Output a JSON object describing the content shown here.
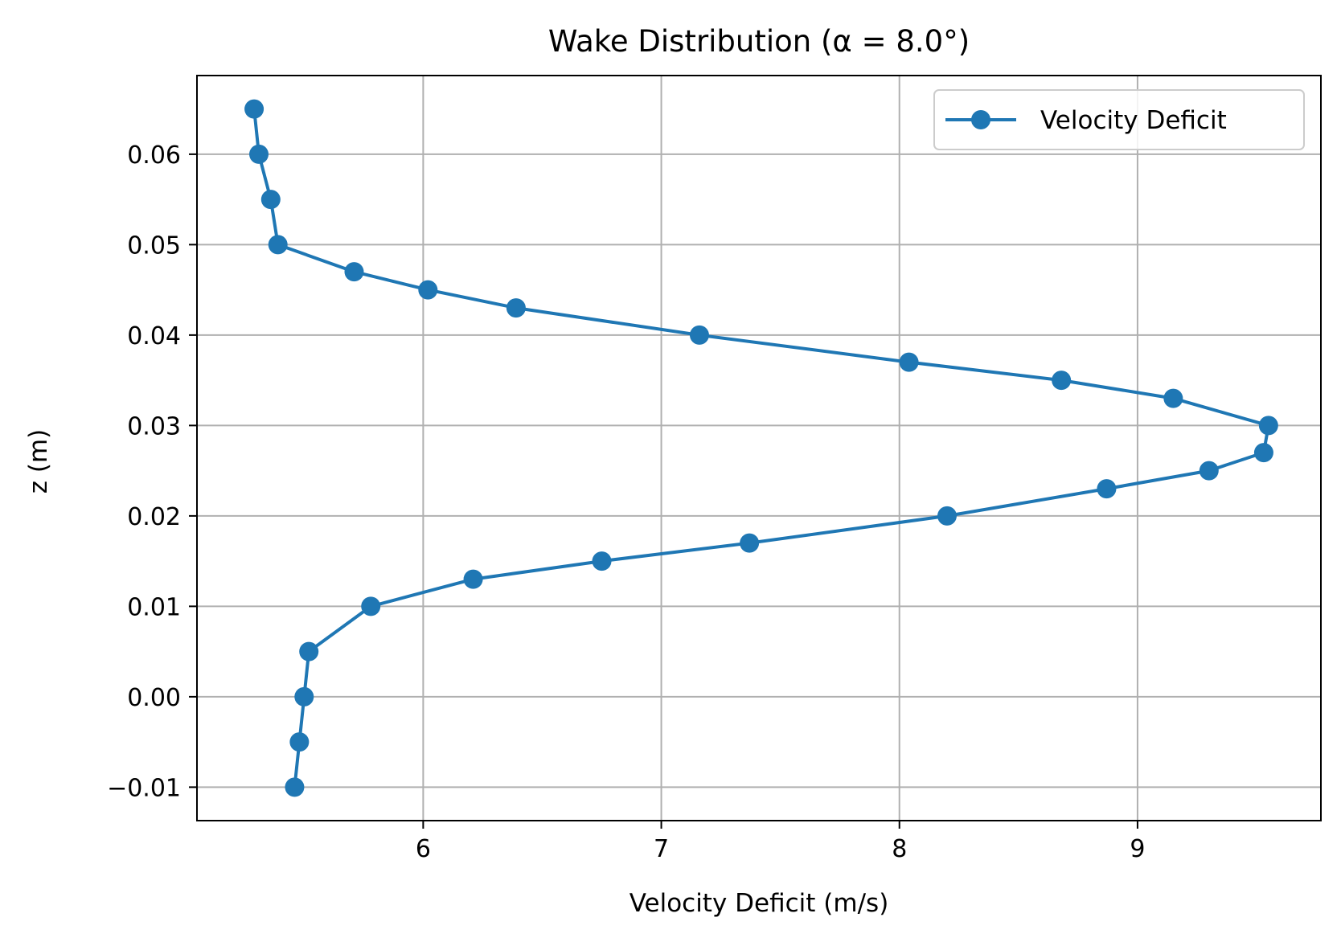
{
  "chart_data": {
    "type": "line",
    "title": "Wake Distribution (α = 8.0°)",
    "xlabel": "Velocity Deficit (m/s)",
    "ylabel": "z (m)",
    "xlim": [
      5.05,
      9.77
    ],
    "ylim": [
      -0.0137,
      0.0687
    ],
    "xticks": [
      6,
      7,
      8,
      9
    ],
    "xtick_labels": [
      "6",
      "7",
      "8",
      "9"
    ],
    "yticks": [
      -0.01,
      0.0,
      0.01,
      0.02,
      0.03,
      0.04,
      0.05,
      0.06
    ],
    "ytick_labels": [
      "−0.01",
      "0.00",
      "0.01",
      "0.02",
      "0.03",
      "0.04",
      "0.05",
      "0.06"
    ],
    "grid": true,
    "legend_position": "top-right",
    "series": [
      {
        "name": "Velocity Deficit",
        "color": "#1f77b4",
        "marker": "circle",
        "points": [
          {
            "x": 5.46,
            "y": -0.01
          },
          {
            "x": 5.48,
            "y": -0.005
          },
          {
            "x": 5.5,
            "y": 0.0
          },
          {
            "x": 5.52,
            "y": 0.005
          },
          {
            "x": 5.78,
            "y": 0.01
          },
          {
            "x": 6.21,
            "y": 0.013
          },
          {
            "x": 6.75,
            "y": 0.015
          },
          {
            "x": 7.37,
            "y": 0.017
          },
          {
            "x": 8.2,
            "y": 0.02
          },
          {
            "x": 8.87,
            "y": 0.023
          },
          {
            "x": 9.3,
            "y": 0.025
          },
          {
            "x": 9.53,
            "y": 0.027
          },
          {
            "x": 9.55,
            "y": 0.03
          },
          {
            "x": 9.15,
            "y": 0.033
          },
          {
            "x": 8.68,
            "y": 0.035
          },
          {
            "x": 8.04,
            "y": 0.037
          },
          {
            "x": 7.16,
            "y": 0.04
          },
          {
            "x": 6.39,
            "y": 0.043
          },
          {
            "x": 6.02,
            "y": 0.045
          },
          {
            "x": 5.71,
            "y": 0.047
          },
          {
            "x": 5.39,
            "y": 0.05
          },
          {
            "x": 5.36,
            "y": 0.055
          },
          {
            "x": 5.31,
            "y": 0.06
          },
          {
            "x": 5.29,
            "y": 0.065
          }
        ]
      }
    ]
  }
}
